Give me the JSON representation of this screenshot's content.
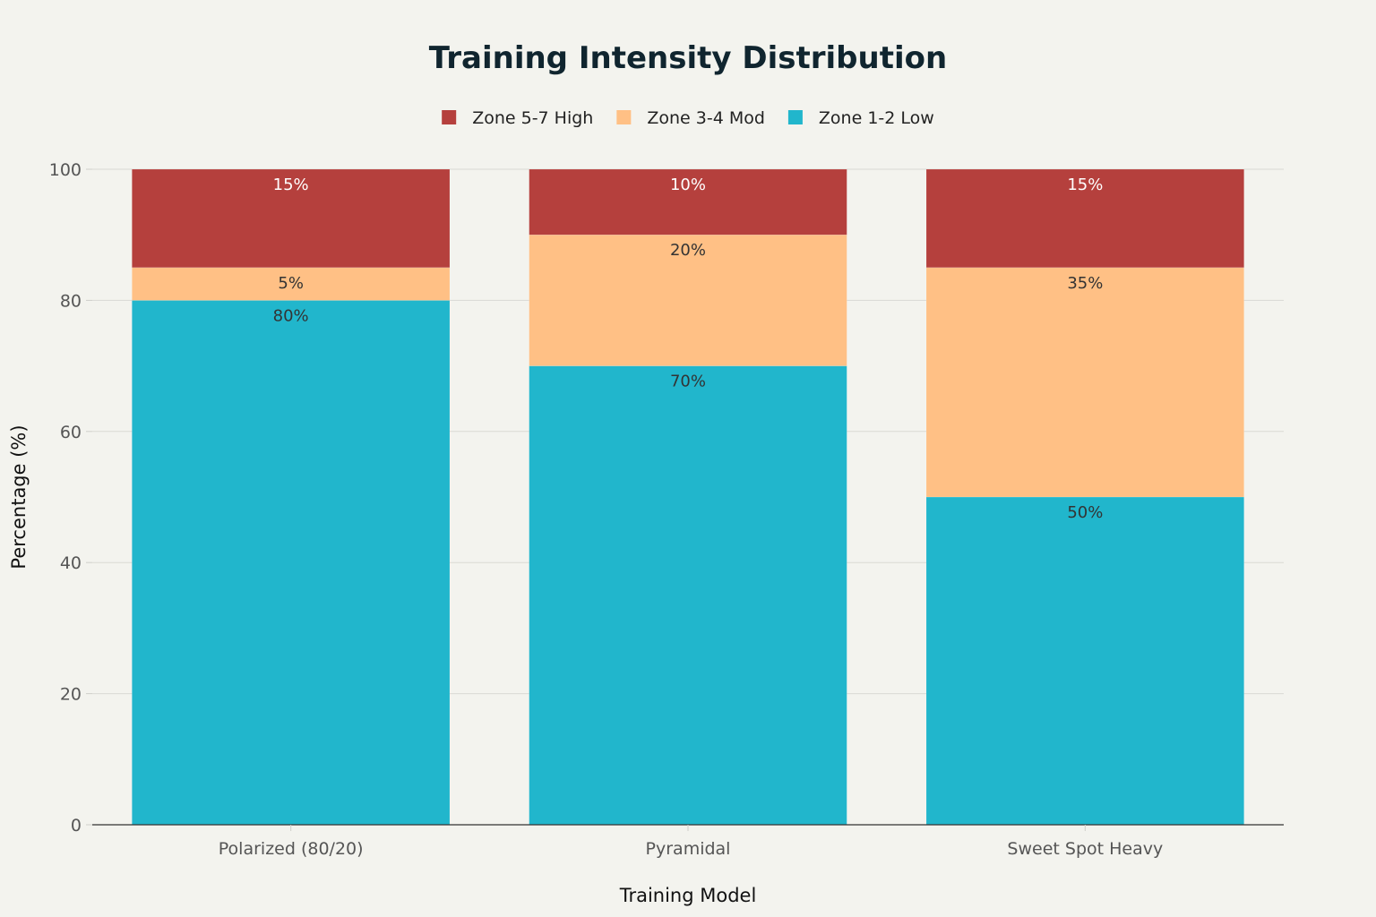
{
  "chart_data": {
    "type": "bar",
    "stacked": true,
    "title": "Training Intensity Distribution",
    "xlabel": "Training Model",
    "ylabel": "Percentage (%)",
    "ylim": [
      0,
      100
    ],
    "yticks": [
      "0",
      "20",
      "40",
      "60",
      "80",
      "100"
    ],
    "categories": [
      "Polarized (80/20)",
      "Pyramidal",
      "Sweet Spot Heavy"
    ],
    "legend_position": "top-center",
    "grid": true,
    "series": [
      {
        "name": "Zone 1-2 Low",
        "color": "#21b6cc",
        "values": [
          80,
          70,
          50
        ],
        "labels": [
          "80%",
          "70%",
          "50%"
        ],
        "label_color": "#333333"
      },
      {
        "name": "Zone 3-4 Mod",
        "color": "#ffc085",
        "values": [
          5,
          20,
          35
        ],
        "labels": [
          "5%",
          "20%",
          "35%"
        ],
        "label_color": "#333333"
      },
      {
        "name": "Zone 5-7 High",
        "color": "#b5403d",
        "values": [
          15,
          10,
          15
        ],
        "labels": [
          "15%",
          "10%",
          "15%"
        ],
        "label_color": "#ffffff"
      }
    ],
    "legend_order": [
      "Zone 5-7 High",
      "Zone 3-4 Mod",
      "Zone 1-2 Low"
    ]
  }
}
